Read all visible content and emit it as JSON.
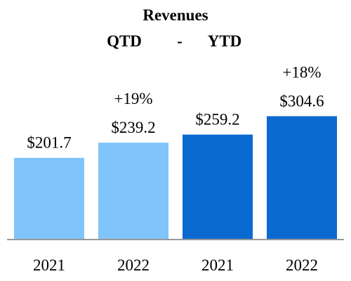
{
  "chart_data": {
    "type": "bar",
    "title": "Revenues",
    "subtitle": [
      "QTD",
      "-",
      "YTD"
    ],
    "categories": [
      "2021",
      "2022",
      "2021",
      "2022"
    ],
    "groups": [
      "QTD",
      "QTD",
      "YTD",
      "YTD"
    ],
    "values": [
      201.7,
      239.2,
      259.2,
      304.6
    ],
    "value_labels": [
      "$201.7",
      "$239.2",
      "$259.2",
      "$304.6"
    ],
    "growth_labels": [
      "",
      "+19%",
      "",
      "+18%"
    ],
    "ylim": [
      0,
      340
    ],
    "xlabel": "",
    "ylabel": "",
    "grid": false,
    "legend": "none",
    "colors": [
      "#7fc4fb",
      "#7fc4fb",
      "#0a6ad0",
      "#0a6ad0"
    ],
    "axis_color": "#999999"
  }
}
